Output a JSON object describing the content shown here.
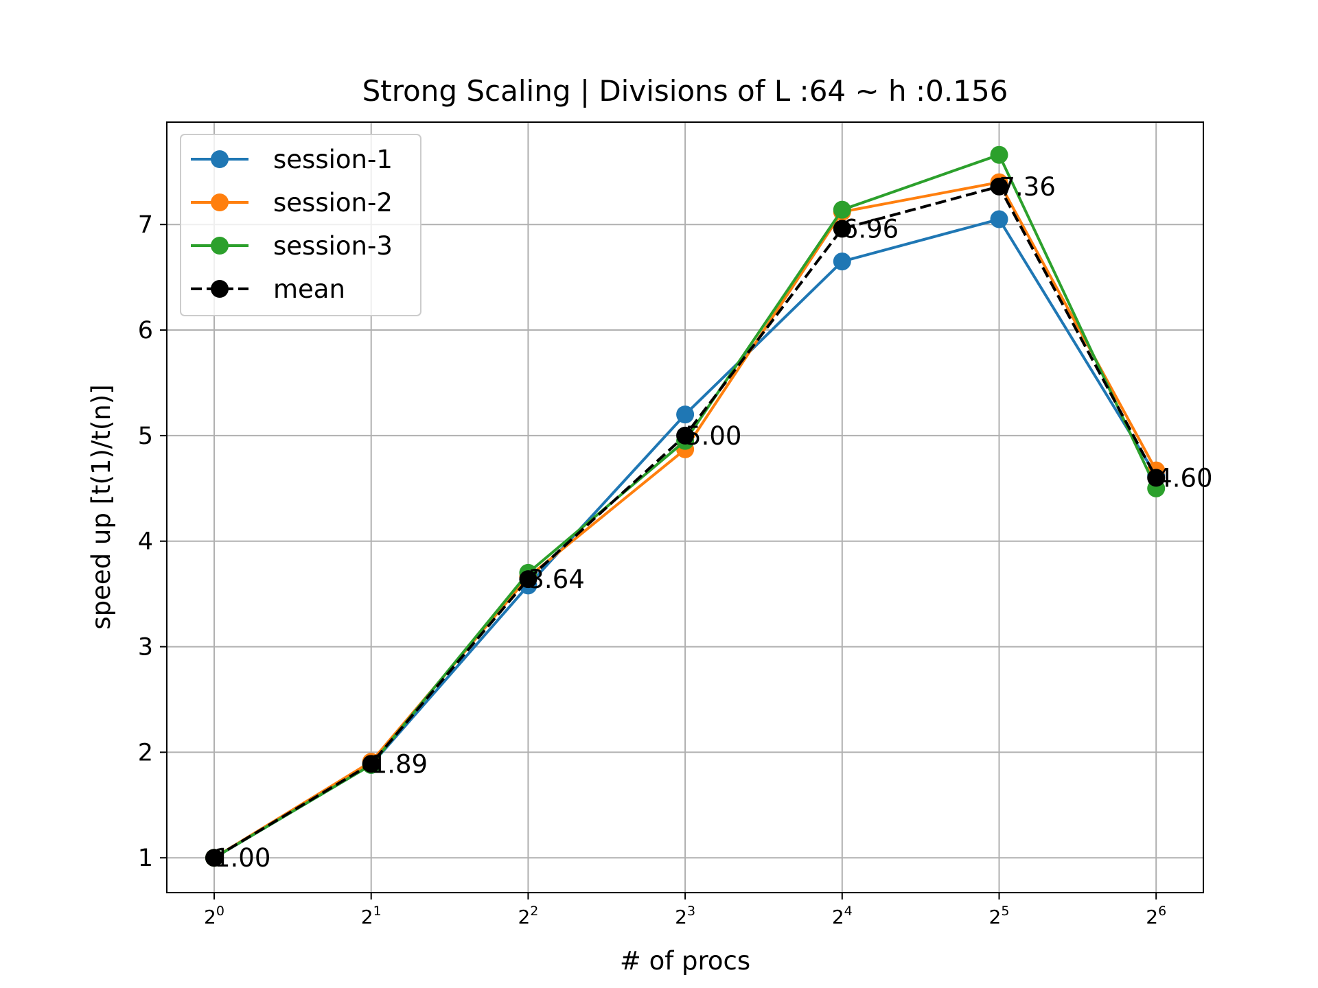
{
  "chart_data": {
    "type": "line",
    "title": "Strong Scaling | Divisions of L :64 ~ h :0.156",
    "xlabel": "# of procs",
    "ylabel": "speed up [t(1)/t(n)]",
    "x_scale": "log2",
    "x": [
      1,
      2,
      4,
      8,
      16,
      32,
      64
    ],
    "x_ticks": [
      {
        "base": "2",
        "exp": "0"
      },
      {
        "base": "2",
        "exp": "1"
      },
      {
        "base": "2",
        "exp": "2"
      },
      {
        "base": "2",
        "exp": "3"
      },
      {
        "base": "2",
        "exp": "4"
      },
      {
        "base": "2",
        "exp": "5"
      },
      {
        "base": "2",
        "exp": "6"
      }
    ],
    "y_ticks": [
      "1",
      "2",
      "3",
      "4",
      "5",
      "6",
      "7"
    ],
    "ylim": [
      0.67,
      7.97
    ],
    "grid": true,
    "legend_position": "upper left",
    "series": [
      {
        "name": "session-1",
        "color": "#1f77b4",
        "style": "solid",
        "values": [
          1.0,
          1.88,
          3.58,
          5.2,
          6.65,
          7.05,
          4.62
        ]
      },
      {
        "name": "session-2",
        "color": "#ff7f0e",
        "style": "solid",
        "values": [
          1.0,
          1.91,
          3.66,
          4.87,
          7.12,
          7.4,
          4.67
        ]
      },
      {
        "name": "session-3",
        "color": "#2ca02c",
        "style": "solid",
        "values": [
          1.0,
          1.88,
          3.7,
          4.95,
          7.14,
          7.66,
          4.5
        ]
      },
      {
        "name": "mean",
        "color": "#000000",
        "style": "dashed",
        "values": [
          1.0,
          1.89,
          3.64,
          5.0,
          6.96,
          7.36,
          4.6
        ]
      }
    ],
    "annotations": [
      "1.00",
      "1.89",
      "3.64",
      "5.00",
      "6.96",
      "7.36",
      "4.60"
    ]
  }
}
